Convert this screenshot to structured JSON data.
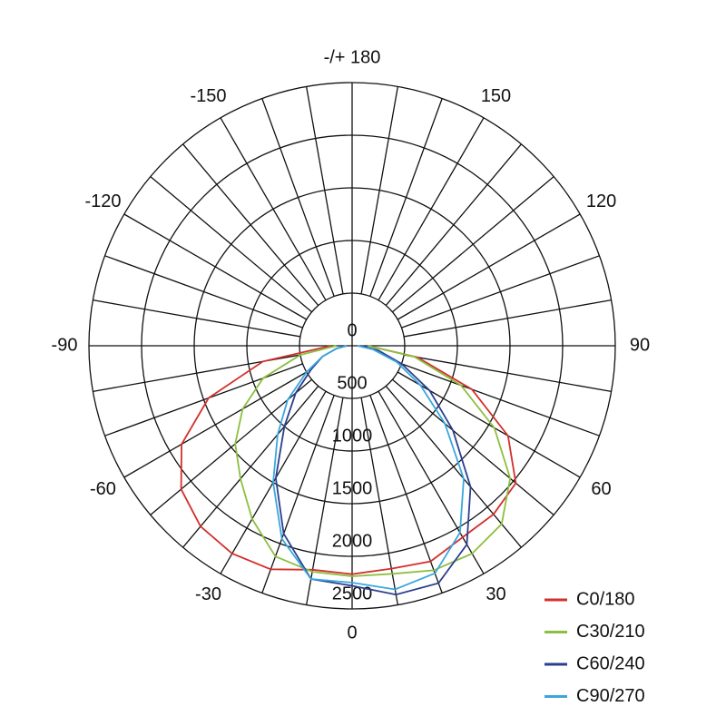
{
  "chart_data": {
    "type": "polar",
    "x": [
      -90,
      -80,
      -70,
      -60,
      -50,
      -40,
      -30,
      -20,
      -10,
      0,
      10,
      20,
      30,
      40,
      50,
      60,
      70,
      80,
      90
    ],
    "series": [
      {
        "name": "C0/180",
        "color": "#d2302c",
        "values": [
          200,
          860,
          1450,
          1870,
          2120,
          2240,
          2280,
          2260,
          2160,
          2170,
          2150,
          2180,
          2100,
          2090,
          2030,
          1710,
          1210,
          630,
          150
        ]
      },
      {
        "name": "C30/210",
        "color": "#8cbf3f",
        "values": [
          150,
          500,
          900,
          1200,
          1450,
          1650,
          1900,
          2130,
          2180,
          2190,
          2200,
          2270,
          2280,
          2210,
          1960,
          1560,
          1100,
          600,
          150
        ]
      },
      {
        "name": "C60/240",
        "color": "#2b3f8f",
        "values": [
          50,
          150,
          300,
          450,
          700,
          1000,
          1450,
          1900,
          2250,
          2280,
          2400,
          2400,
          2180,
          1750,
          1250,
          850,
          500,
          250,
          80
        ]
      },
      {
        "name": "C90/270",
        "color": "#3aa7dc",
        "values": [
          50,
          150,
          300,
          500,
          800,
          1100,
          1500,
          1950,
          2250,
          2250,
          2350,
          2300,
          2050,
          1650,
          1150,
          750,
          450,
          200,
          50
        ]
      }
    ],
    "rlim": [
      0,
      2500
    ],
    "rticks": [
      0,
      500,
      1000,
      1500,
      2000,
      2500
    ],
    "thetaticks": [
      -150,
      -120,
      -90,
      -60,
      -30,
      0,
      30,
      60,
      90,
      120,
      150,
      {
        "value": 180,
        "label": "-/+ 180"
      }
    ]
  }
}
